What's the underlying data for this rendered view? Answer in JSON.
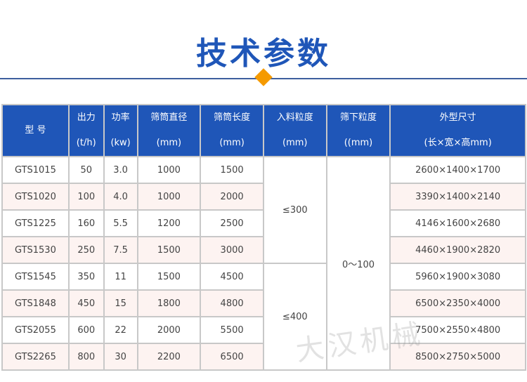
{
  "title": "技术参数",
  "colors": {
    "accent": "#1f56b8",
    "diamond": "#f59a00",
    "stripe": "#fdf3f1"
  },
  "headers": [
    {
      "l1": "型 号",
      "l2": ""
    },
    {
      "l1": "出力",
      "l2": "(t/h)"
    },
    {
      "l1": "功率",
      "l2": "(kw)"
    },
    {
      "l1": "筛筒直径",
      "l2": "(mm)"
    },
    {
      "l1": "筛筒长度",
      "l2": "(mm)"
    },
    {
      "l1": "入料粒度",
      "l2": "(mm)"
    },
    {
      "l1": "筛下粒度",
      "l2": "((mm)"
    },
    {
      "l1": "外型尺寸",
      "l2": "(长×宽×高mm)"
    }
  ],
  "rows": [
    [
      "GTS1015",
      "50",
      "3.0",
      "1000",
      "1500",
      "2600×1400×1700"
    ],
    [
      "GTS1020",
      "100",
      "4.0",
      "1000",
      "2000",
      "3390×1400×2140"
    ],
    [
      "GTS1225",
      "160",
      "5.5",
      "1200",
      "2500",
      "4146×1600×2680"
    ],
    [
      "GTS1530",
      "250",
      "7.5",
      "1500",
      "3000",
      "4460×1900×2820"
    ],
    [
      "GTS1545",
      "350",
      "11",
      "1500",
      "4500",
      "5960×1900×3080"
    ],
    [
      "GTS1848",
      "450",
      "15",
      "1800",
      "4800",
      "6500×2350×4000"
    ],
    [
      "GTS2055",
      "600",
      "22",
      "2000",
      "5500",
      "7500×2550×4800"
    ],
    [
      "GTS2265",
      "800",
      "30",
      "2200",
      "6500",
      "8500×2750×5000"
    ]
  ],
  "feed_size": [
    "≤300",
    "≤400"
  ],
  "undersize": "0～100",
  "watermark": "大汉机械"
}
